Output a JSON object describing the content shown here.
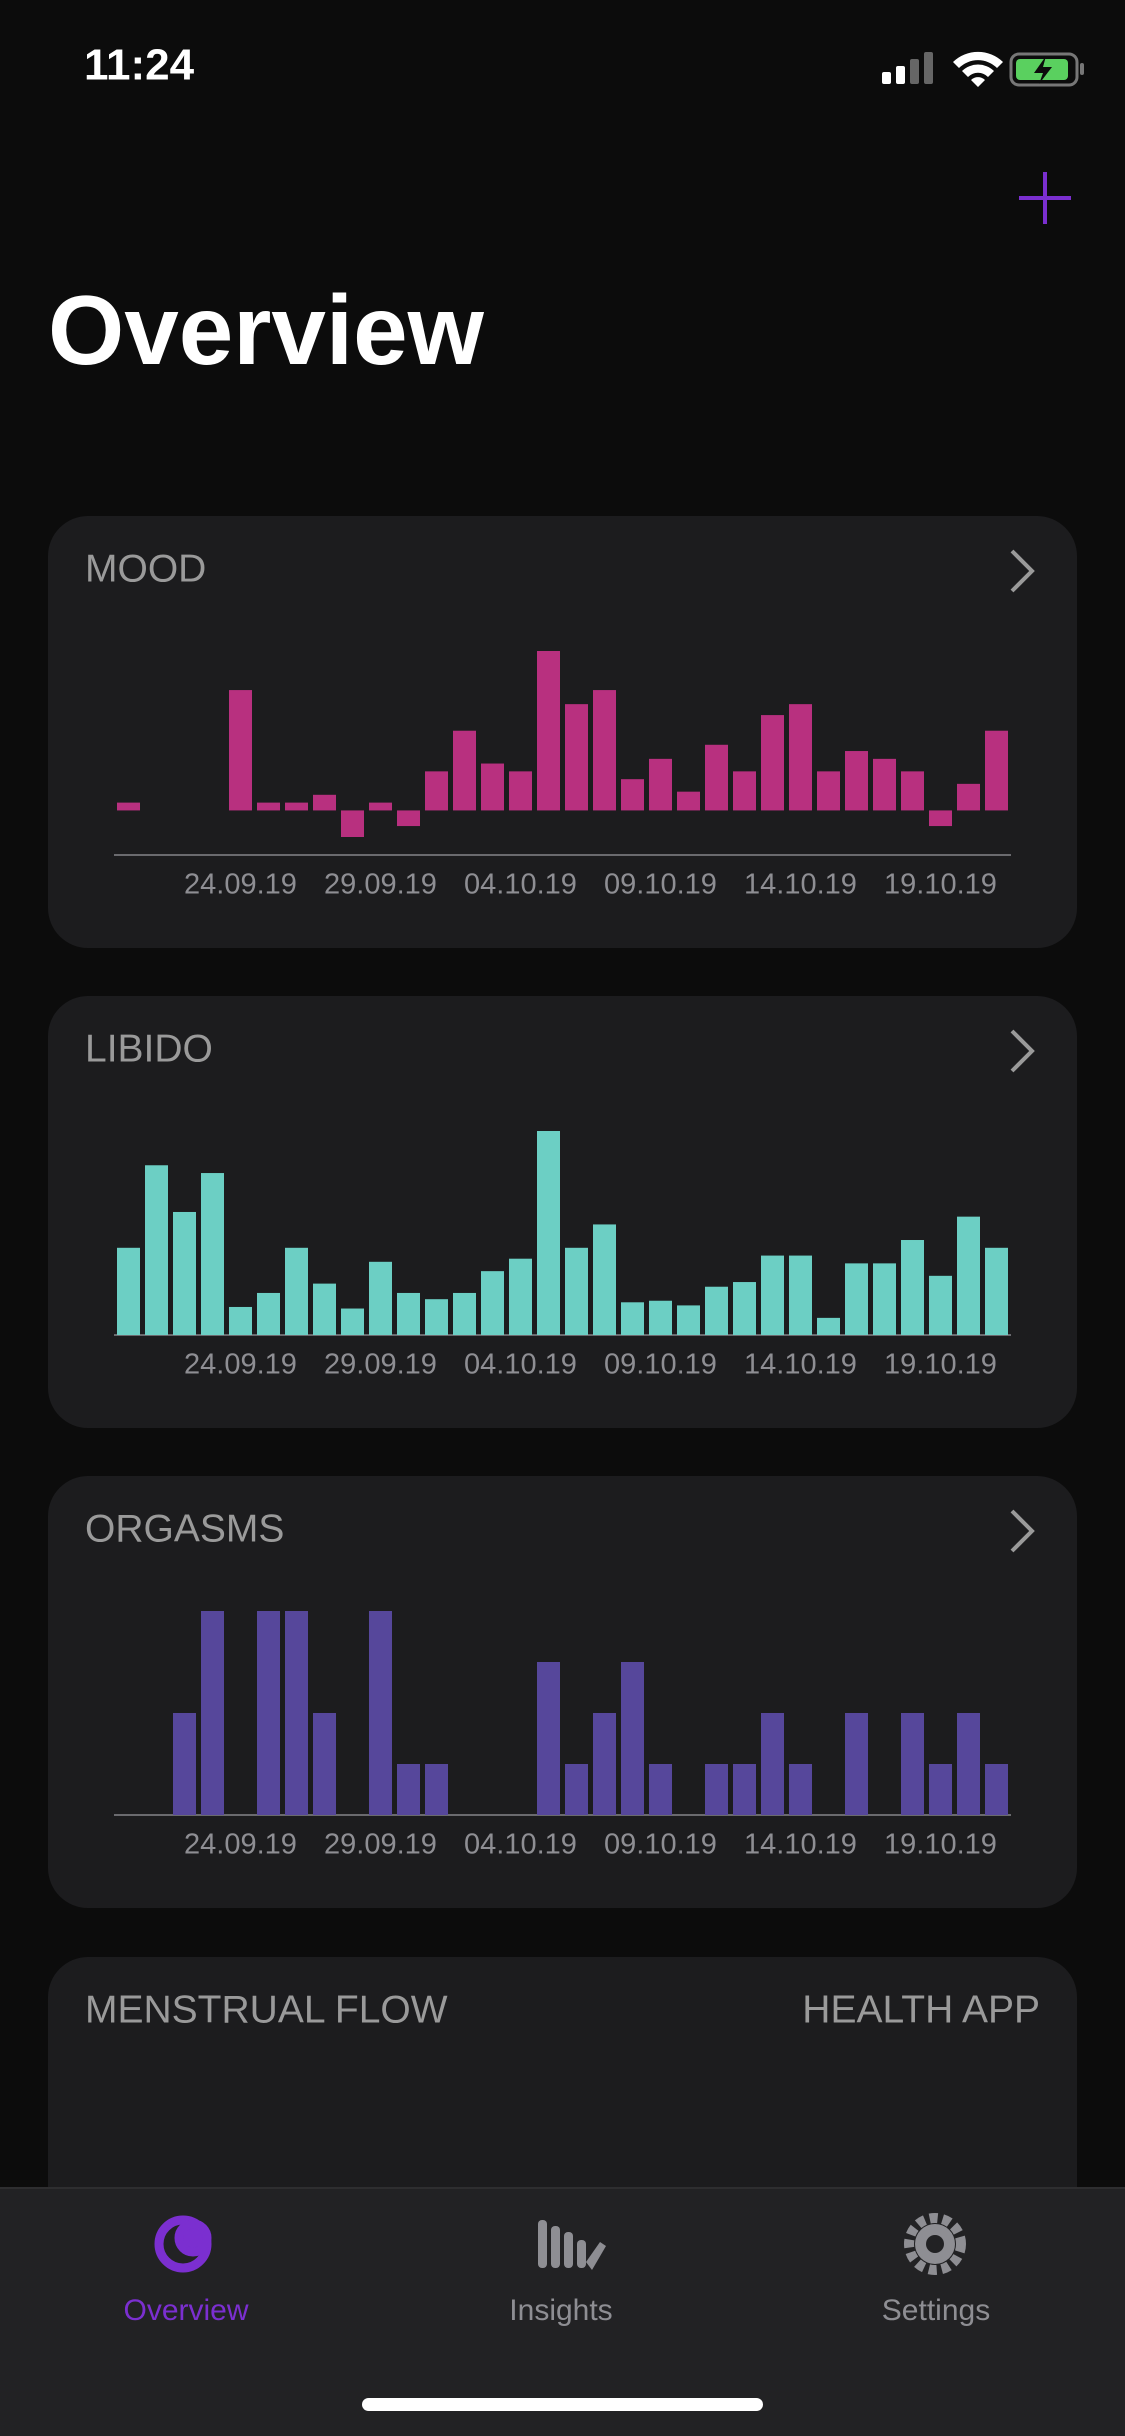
{
  "status_bar": {
    "time": "11:24"
  },
  "header": {
    "title": "Overview"
  },
  "chart_data": [
    {
      "type": "bar",
      "title": "MOOD",
      "color": "#b8307f",
      "categories": [
        null,
        null,
        null,
        null,
        "24.09.19",
        null,
        null,
        null,
        null,
        "29.09.19",
        null,
        null,
        null,
        null,
        "04.10.19",
        null,
        null,
        null,
        null,
        "09.10.19",
        null,
        null,
        null,
        null,
        "14.10.19",
        null,
        null,
        null,
        null,
        "19.10.19",
        null,
        null
      ],
      "values": [
        5,
        null,
        null,
        null,
        77,
        5,
        5,
        10,
        -17,
        5,
        -10,
        25,
        51,
        30,
        25,
        102,
        68,
        77,
        20,
        33,
        12,
        42,
        25,
        61,
        68,
        25,
        38,
        33,
        25,
        -10,
        17,
        51
      ]
    },
    {
      "type": "bar",
      "title": "LIBIDO",
      "color": "#6ccfc4",
      "categories": [
        null,
        null,
        null,
        null,
        "24.09.19",
        null,
        null,
        null,
        null,
        "29.09.19",
        null,
        null,
        null,
        null,
        "04.10.19",
        null,
        null,
        null,
        null,
        "09.10.19",
        null,
        null,
        null,
        null,
        "14.10.19",
        null,
        null,
        null,
        null,
        "19.10.19",
        null,
        null
      ],
      "values": [
        56,
        109,
        79,
        104,
        18,
        27,
        56,
        33,
        17,
        47,
        27,
        23,
        27,
        41,
        49,
        131,
        56,
        71,
        21,
        22,
        19,
        31,
        34,
        51,
        51,
        11,
        46,
        46,
        61,
        38,
        76,
        56
      ]
    },
    {
      "type": "bar",
      "title": "ORGASMS",
      "color": "#56479b",
      "categories": [
        null,
        null,
        null,
        null,
        "24.09.19",
        null,
        null,
        null,
        null,
        "29.09.19",
        null,
        null,
        null,
        null,
        "04.10.19",
        null,
        null,
        null,
        null,
        "09.10.19",
        null,
        null,
        null,
        null,
        "14.10.19",
        null,
        null,
        null,
        null,
        "19.10.19",
        null,
        null
      ],
      "values": [
        null,
        null,
        2,
        4,
        null,
        4,
        4,
        2,
        null,
        4,
        1,
        1,
        null,
        null,
        null,
        3,
        1,
        2,
        3,
        1,
        null,
        1,
        1,
        2,
        1,
        null,
        2,
        null,
        2,
        1,
        2,
        1
      ]
    }
  ],
  "menstrual_card": {
    "title": "MENSTRUAL FLOW",
    "action": "HEALTH APP"
  },
  "tab_bar": {
    "tabs": [
      "Overview",
      "Insights",
      "Settings"
    ]
  }
}
